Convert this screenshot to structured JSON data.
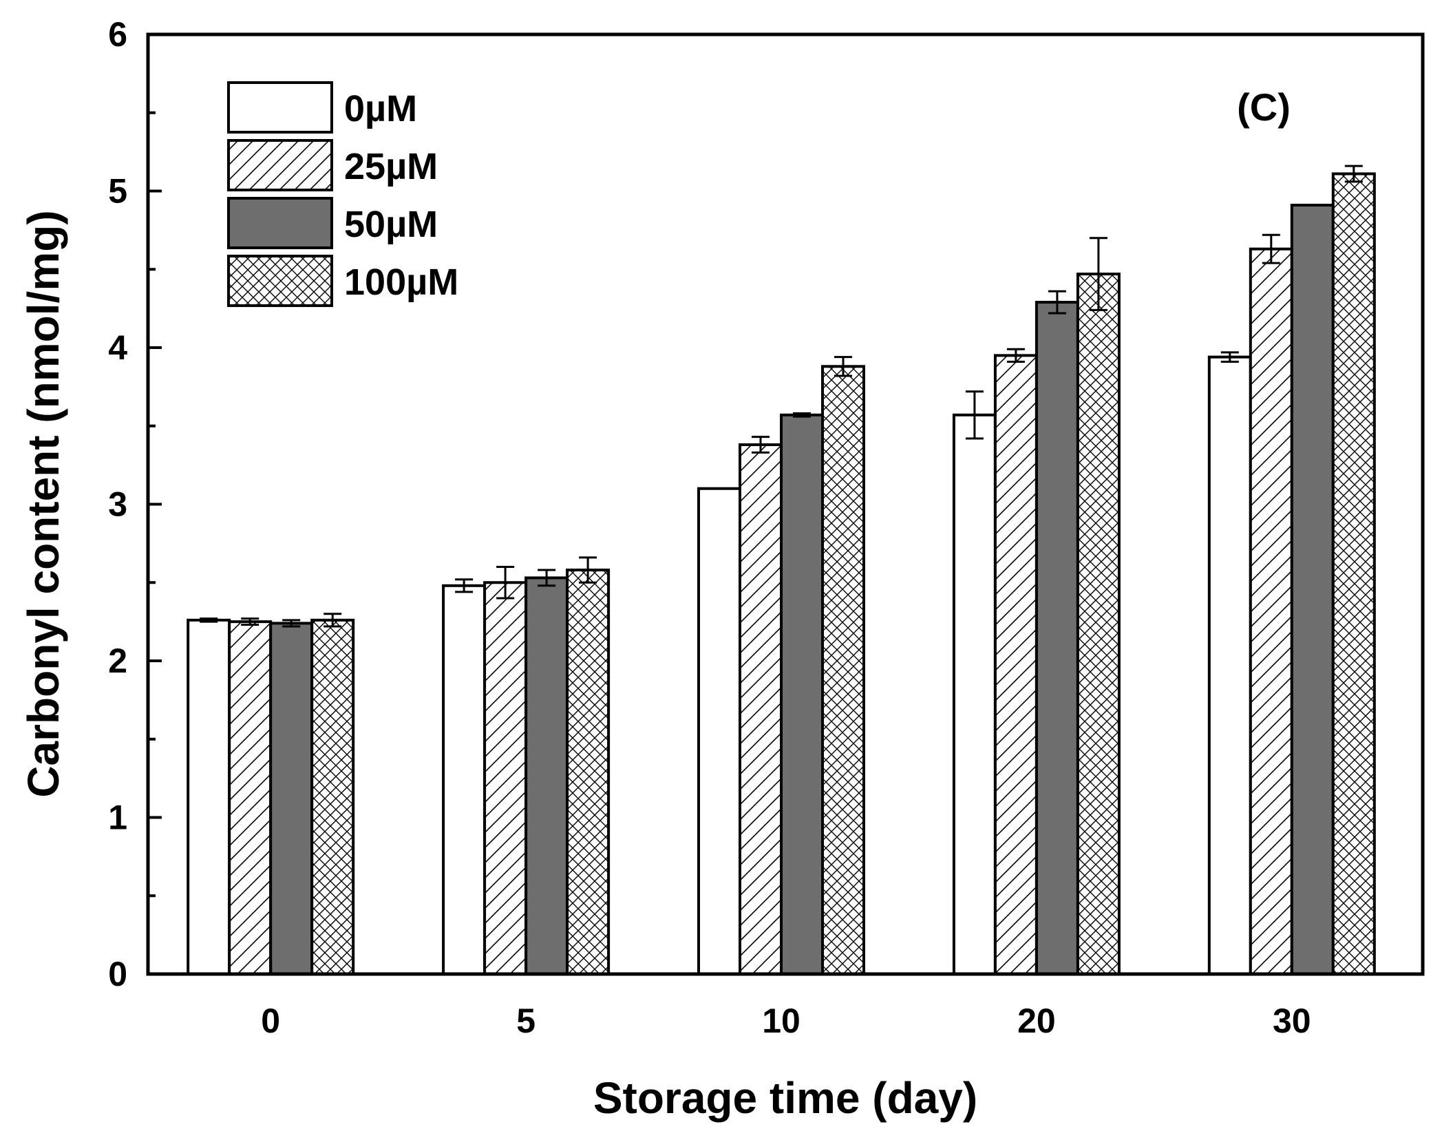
{
  "chart_data": {
    "type": "bar",
    "title": "",
    "panel_label": "(C)",
    "xlabel": "Storage time (day)",
    "ylabel": "Carbonyl content (nmol/mg)",
    "categories": [
      "0",
      "5",
      "10",
      "20",
      "30"
    ],
    "ylim": [
      0,
      6
    ],
    "yticks": [
      "0",
      "1",
      "2",
      "3",
      "4",
      "5",
      "6"
    ],
    "legend_position": "top-left",
    "series": [
      {
        "name": "0µM",
        "pattern": "white",
        "values": [
          2.26,
          2.48,
          3.1,
          3.57,
          3.94
        ],
        "errors": [
          0.01,
          0.04,
          0.0,
          0.15,
          0.03
        ]
      },
      {
        "name": "25µM",
        "pattern": "diagonal",
        "values": [
          2.25,
          2.5,
          3.38,
          3.95,
          4.63
        ],
        "errors": [
          0.02,
          0.1,
          0.05,
          0.04,
          0.09
        ]
      },
      {
        "name": "50µM",
        "pattern": "gray",
        "values": [
          2.24,
          2.53,
          3.57,
          4.29,
          4.91
        ],
        "errors": [
          0.02,
          0.05,
          0.01,
          0.07,
          0.0
        ]
      },
      {
        "name": "100µM",
        "pattern": "crosshatch",
        "values": [
          2.26,
          2.58,
          3.88,
          4.47,
          5.11
        ],
        "errors": [
          0.04,
          0.08,
          0.06,
          0.23,
          0.05
        ]
      }
    ],
    "colors": {
      "gray": "#6e6e6e",
      "stroke": "#000000",
      "fill": "#ffffff"
    }
  }
}
